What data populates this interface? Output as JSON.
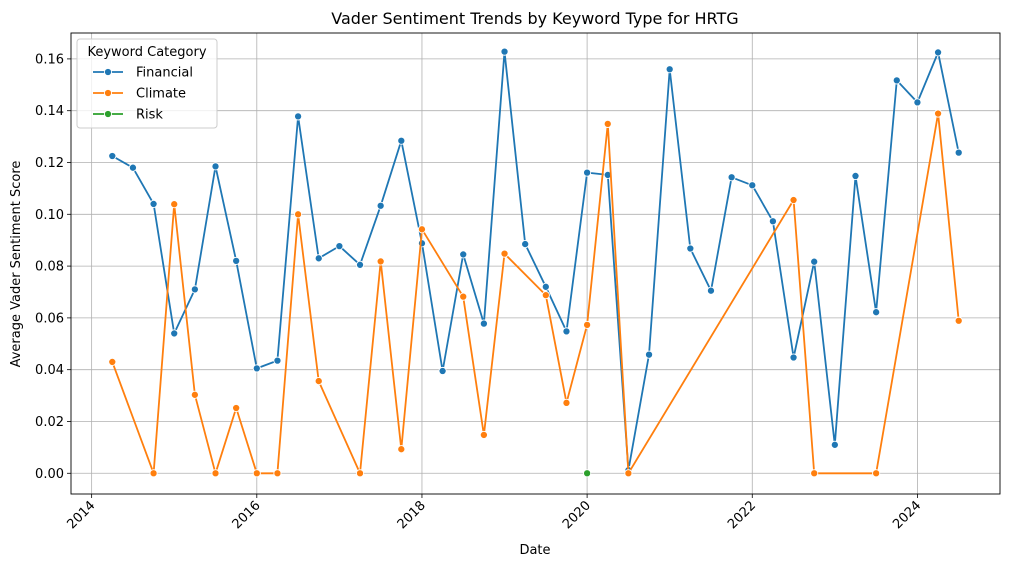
{
  "chart_data": {
    "type": "line",
    "title": "Vader Sentiment Trends by Keyword Type for HRTG",
    "xlabel": "Date",
    "ylabel": "Average Vader Sentiment Score",
    "x_ticks": [
      "2014",
      "2016",
      "2018",
      "2020",
      "2022",
      "2024"
    ],
    "y_ticks": [
      "0.00",
      "0.02",
      "0.04",
      "0.06",
      "0.08",
      "0.10",
      "0.12",
      "0.14",
      "0.16"
    ],
    "xlim": [
      "2013-10",
      "2025-01"
    ],
    "ylim": [
      -0.008,
      0.17
    ],
    "grid": true,
    "legend": {
      "title": "Keyword Category",
      "placement": "top-left"
    },
    "series": [
      {
        "name": "Financial",
        "color": "#1f77b4",
        "points": [
          [
            "2014-04",
            0.1225
          ],
          [
            "2014-07",
            0.118
          ],
          [
            "2014-10",
            0.104
          ],
          [
            "2015-01",
            0.054
          ],
          [
            "2015-04",
            0.071
          ],
          [
            "2015-07",
            0.1185
          ],
          [
            "2015-10",
            0.082
          ],
          [
            "2016-01",
            0.0405
          ],
          [
            "2016-04",
            0.0435
          ],
          [
            "2016-07",
            0.1378
          ],
          [
            "2016-10",
            0.083
          ],
          [
            "2017-01",
            0.0877
          ],
          [
            "2017-04",
            0.0805
          ],
          [
            "2017-07",
            0.1033
          ],
          [
            "2017-10",
            0.1284
          ],
          [
            "2018-01",
            0.0888
          ],
          [
            "2018-04",
            0.0395
          ],
          [
            "2018-07",
            0.0845
          ],
          [
            "2018-10",
            0.0578
          ],
          [
            "2019-01",
            0.1628
          ],
          [
            "2019-04",
            0.0885
          ],
          [
            "2019-07",
            0.072
          ],
          [
            "2019-10",
            0.0548
          ],
          [
            "2020-01",
            0.1161
          ],
          [
            "2020-04",
            0.1152
          ],
          [
            "2020-07",
            0.0012
          ],
          [
            "2020-10",
            0.0458
          ],
          [
            "2021-01",
            0.156
          ],
          [
            "2021-04",
            0.0868
          ],
          [
            "2021-07",
            0.0705
          ],
          [
            "2021-10",
            0.1143
          ],
          [
            "2022-01",
            0.1112
          ],
          [
            "2022-04",
            0.0973
          ],
          [
            "2022-07",
            0.0447
          ],
          [
            "2022-10",
            0.0817
          ],
          [
            "2023-01",
            0.011
          ],
          [
            "2023-04",
            0.1148
          ],
          [
            "2023-07",
            0.0622
          ],
          [
            "2023-10",
            0.1517
          ],
          [
            "2024-01",
            0.1432
          ],
          [
            "2024-04",
            0.1625
          ],
          [
            "2024-07",
            0.1238
          ]
        ]
      },
      {
        "name": "Climate",
        "color": "#ff7f0e",
        "points": [
          [
            "2014-04",
            0.043
          ],
          [
            "2014-10",
            0.0
          ],
          [
            "2015-01",
            0.1039
          ],
          [
            "2015-04",
            0.0303
          ],
          [
            "2015-07",
            0.0
          ],
          [
            "2015-10",
            0.0252
          ],
          [
            "2016-01",
            0.0
          ],
          [
            "2016-04",
            0.0
          ],
          [
            "2016-07",
            0.1
          ],
          [
            "2016-10",
            0.0356
          ],
          [
            "2017-04",
            0.0
          ],
          [
            "2017-07",
            0.0818
          ],
          [
            "2017-10",
            0.0093
          ],
          [
            "2018-01",
            0.0942
          ],
          [
            "2018-07",
            0.0682
          ],
          [
            "2018-10",
            0.0148
          ],
          [
            "2019-01",
            0.0848
          ],
          [
            "2019-07",
            0.0688
          ],
          [
            "2019-10",
            0.0272
          ],
          [
            "2020-01",
            0.0573
          ],
          [
            "2020-04",
            0.1349
          ],
          [
            "2020-07",
            0.0
          ],
          [
            "2022-07",
            0.1055
          ],
          [
            "2022-10",
            0.0
          ],
          [
            "2023-07",
            0.0
          ],
          [
            "2024-04",
            0.1389
          ],
          [
            "2024-07",
            0.0589
          ]
        ]
      },
      {
        "name": "Risk",
        "color": "#2ca02c",
        "points": [
          [
            "2020-01",
            0.0
          ]
        ]
      }
    ]
  }
}
